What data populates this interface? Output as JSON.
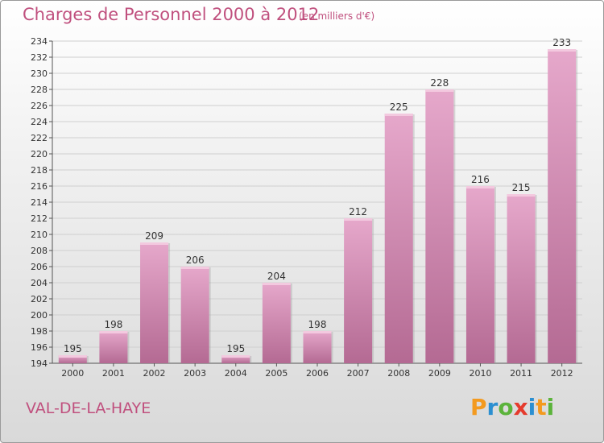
{
  "header": {
    "title": "Charges de Personnel 2000 à 2012",
    "subtitle": "(en milliers d'€)"
  },
  "footer": {
    "commune": "VAL-DE-LA-HAYE",
    "brand": {
      "letters": [
        "P",
        "r",
        "o",
        "x",
        "i",
        "t",
        "i"
      ],
      "colors": [
        "#f39a1f",
        "#2b8fd1",
        "#5bb33b",
        "#e53b2d",
        "#2b8fd1",
        "#f39a1f",
        "#5bb33b"
      ]
    }
  },
  "chart_data": {
    "type": "bar",
    "title": "Charges de Personnel 2000 à 2012",
    "subtitle": "(en milliers d'€)",
    "categories": [
      "2000",
      "2001",
      "2002",
      "2003",
      "2004",
      "2005",
      "2006",
      "2007",
      "2008",
      "2009",
      "2010",
      "2011",
      "2012"
    ],
    "values": [
      195,
      198,
      209,
      206,
      195,
      204,
      198,
      212,
      225,
      228,
      216,
      215,
      233
    ],
    "ylim": [
      194,
      234
    ],
    "yticks": [
      194,
      196,
      198,
      200,
      202,
      204,
      206,
      208,
      210,
      212,
      214,
      216,
      218,
      220,
      222,
      224,
      226,
      228,
      230,
      232,
      234
    ],
    "grid": true,
    "bar_color": "#d98ab3",
    "data_labels": true
  }
}
